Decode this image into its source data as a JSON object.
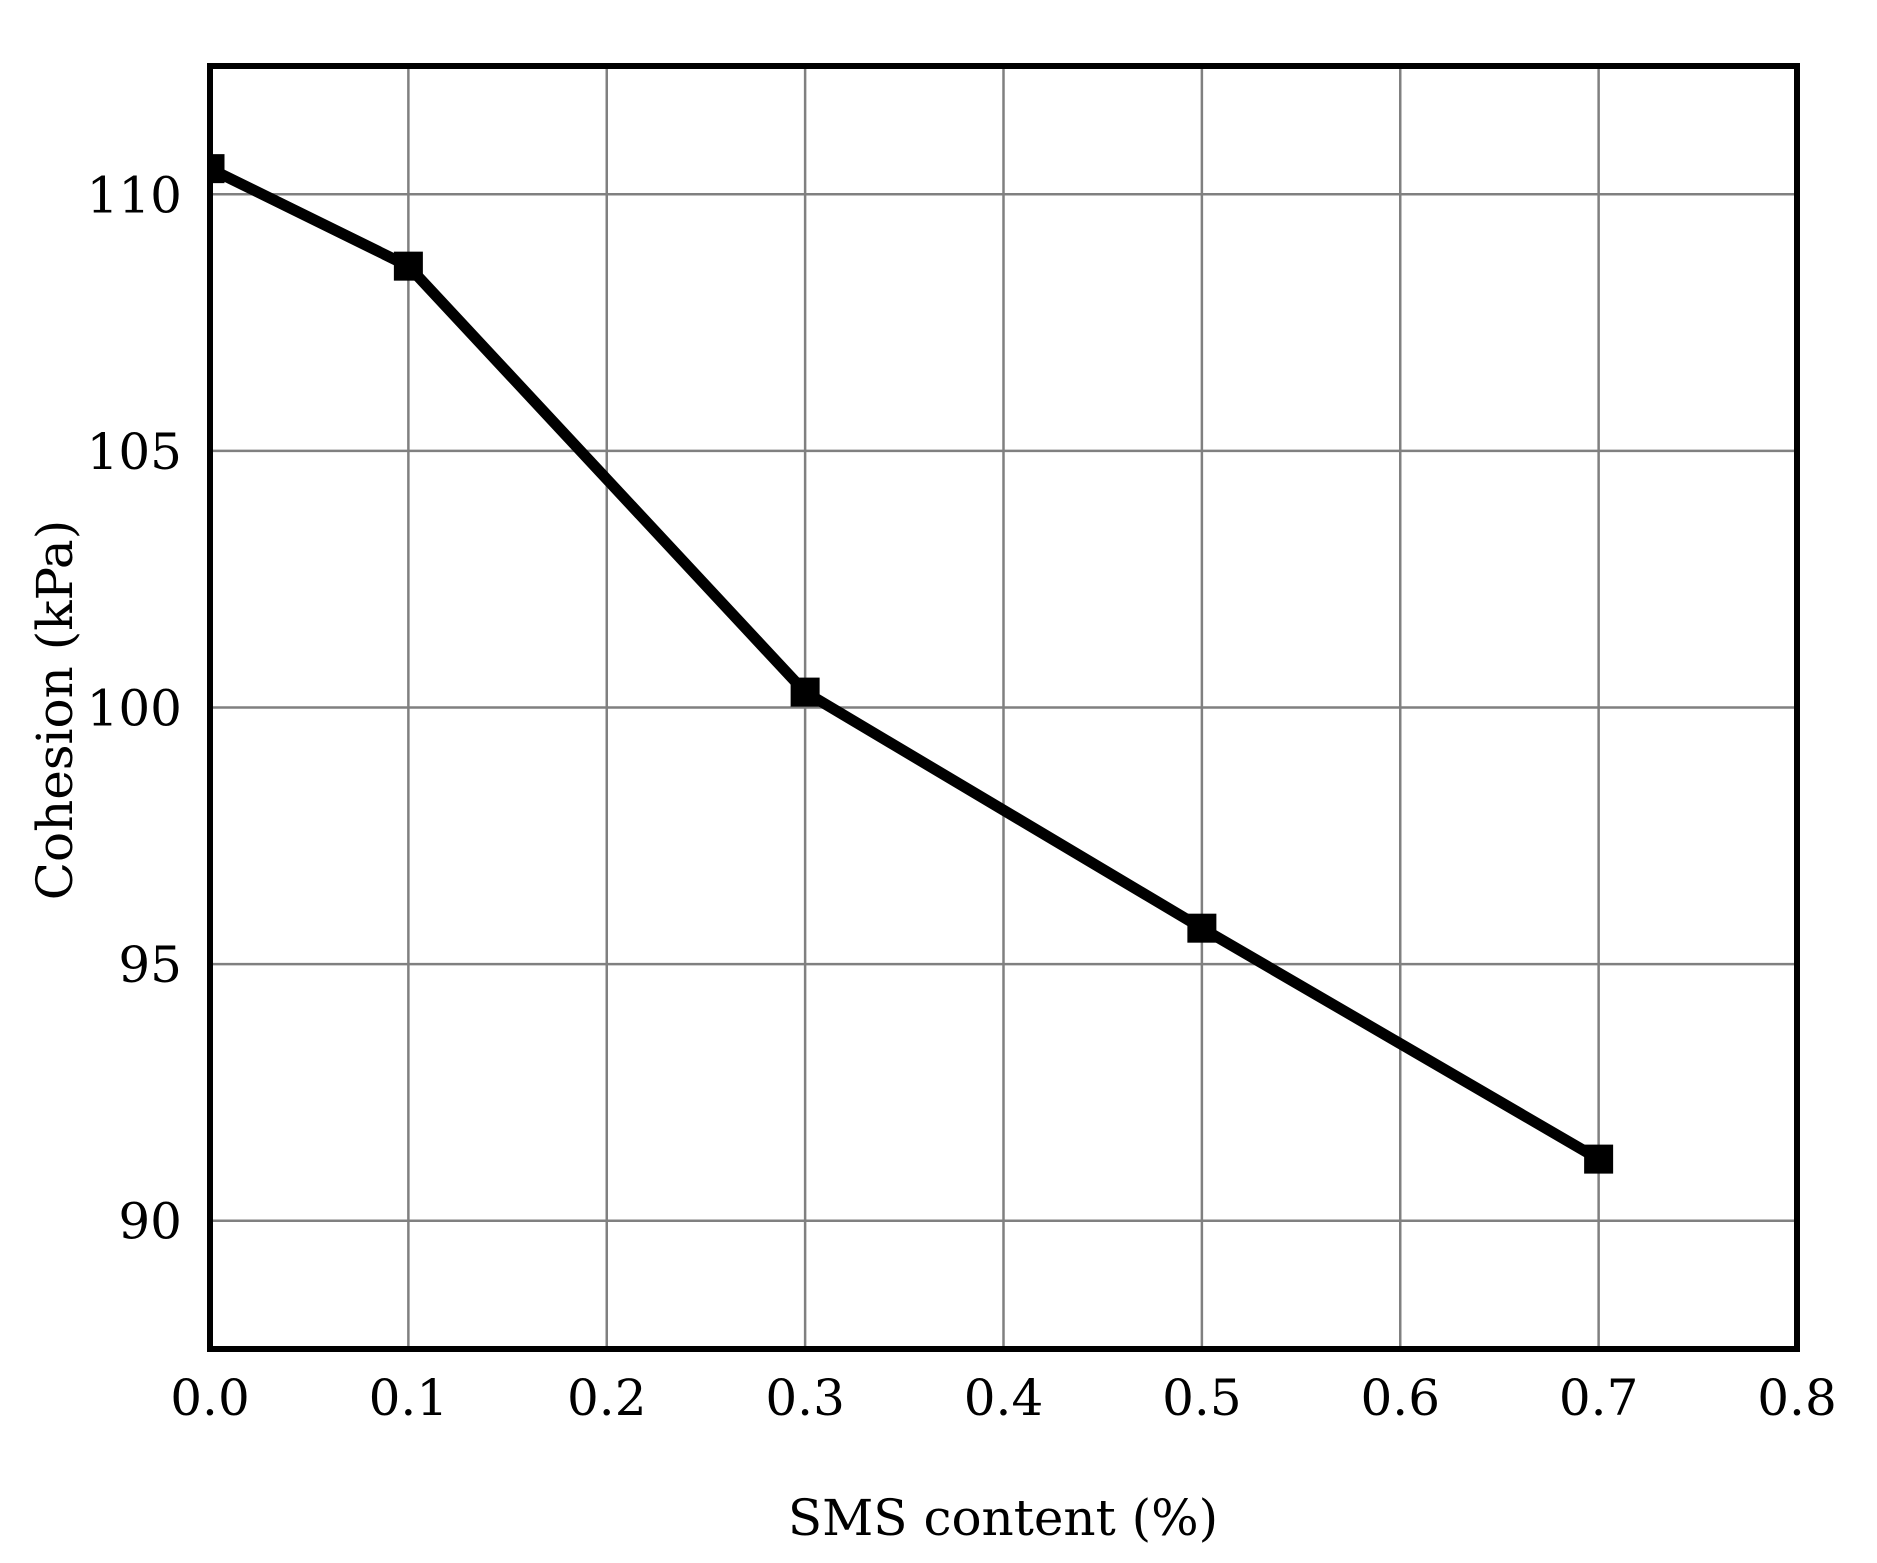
{
  "chart_data": {
    "type": "line",
    "title": "",
    "xlabel": "SMS content (%)",
    "ylabel": "Cohesion (kPa)",
    "xlim": [
      0.0,
      0.8
    ],
    "ylim": [
      87.5,
      112.5
    ],
    "x_ticks": [
      "0.0",
      "0.1",
      "0.2",
      "0.3",
      "0.4",
      "0.5",
      "0.6",
      "0.7",
      "0.8"
    ],
    "y_ticks": [
      "90",
      "95",
      "100",
      "105",
      "110"
    ],
    "grid": true,
    "legend": null,
    "series": [
      {
        "name": "Cohesion",
        "marker": "square",
        "color": "#000000",
        "x": [
          0.0,
          0.1,
          0.3,
          0.5,
          0.7
        ],
        "values": [
          110.5,
          108.6,
          100.3,
          95.7,
          91.2
        ]
      }
    ]
  },
  "colors": {
    "line": "#000000",
    "grid": "#808080",
    "frame": "#000000",
    "background": "#ffffff"
  }
}
